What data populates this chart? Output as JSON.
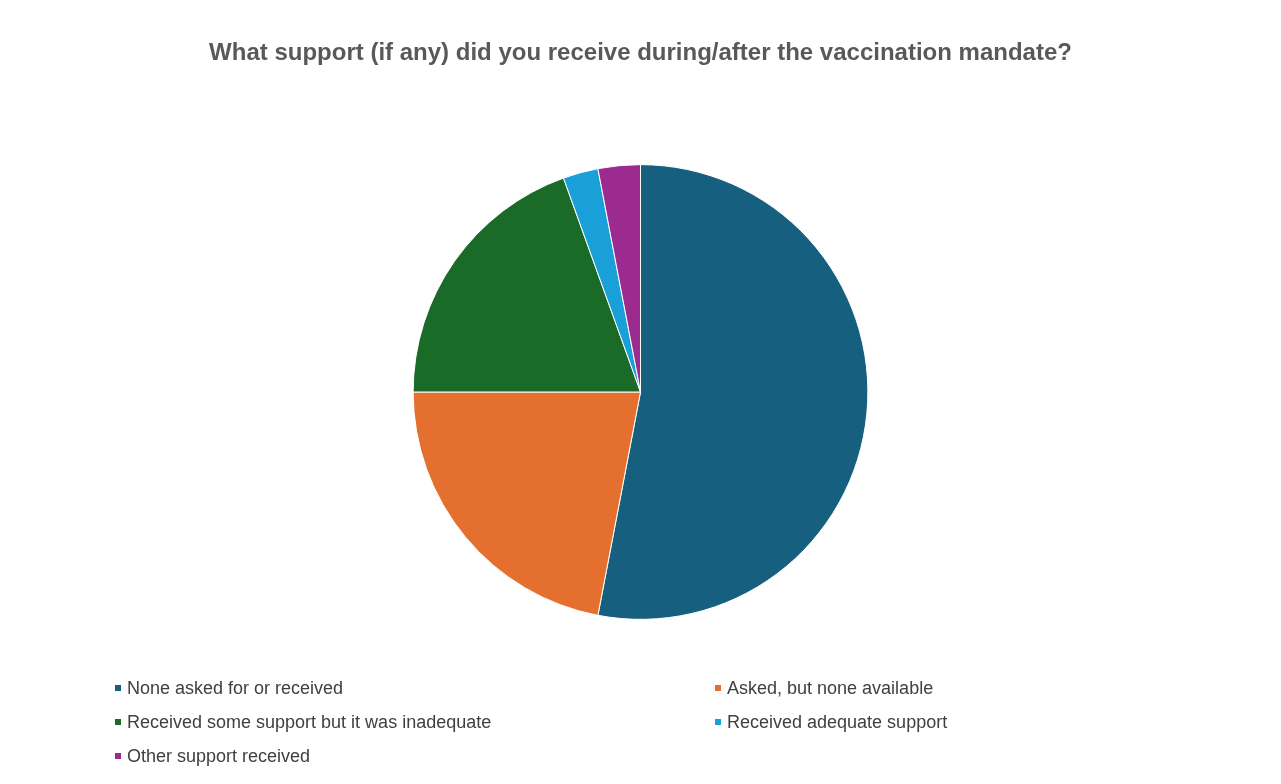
{
  "chart_data": {
    "type": "pie",
    "title": "What support (if any) did you receive during/after the vaccination mandate?",
    "categories": [
      "None asked for or received",
      "Asked, but none available",
      "Received some support but it was inadequate",
      "Received adequate support",
      "Other support received"
    ],
    "values": [
      53,
      22,
      19.5,
      2.5,
      3
    ],
    "colors": [
      "#175f7f",
      "#e46f2e",
      "#1a6b27",
      "#1aa0d8",
      "#9b2b8e"
    ],
    "legend": "bottom"
  }
}
